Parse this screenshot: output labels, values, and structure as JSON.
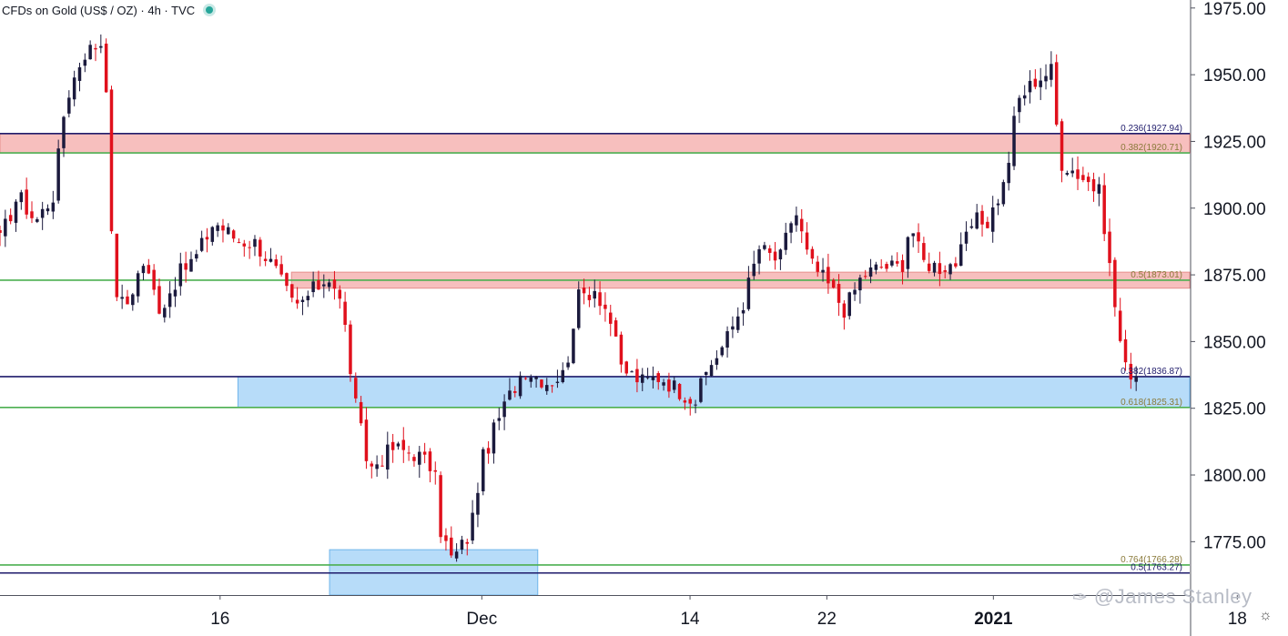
{
  "header": {
    "symbol_title": "CFDs on Gold (US$ / OZ) · 4h · TVC"
  },
  "watermark": {
    "handle": "@James Stanley"
  },
  "colors": {
    "up_candle": "#1b1a3d",
    "down_candle": "#e0101c",
    "fib_navy": "#1f1b6b",
    "fib_green": "#4caf50",
    "red_zone": "#f4a9a8",
    "blue_zone": "#9fd0f7"
  },
  "chart_data": {
    "type": "candlestick",
    "title": "CFDs on Gold (US$ / OZ) · 4h · TVC",
    "ylim": [
      1755,
      1978
    ],
    "y_ticks": [
      "1975.00",
      "1950.00",
      "1925.00",
      "1900.00",
      "1875.00",
      "1850.00",
      "1825.00",
      "1800.00",
      "1775.00"
    ],
    "x_ticks": [
      "16",
      "Dec",
      "14",
      "22",
      "2021",
      "18"
    ],
    "x_tick_positions": [
      0.185,
      0.405,
      0.58,
      0.695,
      0.835,
      1.04
    ],
    "fib_levels": [
      {
        "label": "0.236(1927.94)",
        "value": 1927.94,
        "color": "navy",
        "start": 0
      },
      {
        "label": "0.382(1920.71)",
        "value": 1920.71,
        "color": "green",
        "start": 0
      },
      {
        "label": "0.5(1873.01)",
        "value": 1873.01,
        "color": "green",
        "start": 0
      },
      {
        "label": "0.382(1836.87)",
        "value": 1836.87,
        "color": "navy",
        "start": 0
      },
      {
        "label": "0.618(1825.31)",
        "value": 1825.31,
        "color": "green",
        "start": 0
      },
      {
        "label": "0.764(1766.28)",
        "value": 1766.28,
        "color": "green",
        "start": 0
      },
      {
        "label": "0.5(1763.27)",
        "value": 1763.27,
        "color": "navy",
        "start": 0
      }
    ],
    "zones": [
      {
        "kind": "red",
        "low": 1920.71,
        "high": 1927.94,
        "start": 0.0,
        "end": 1.0
      },
      {
        "kind": "red",
        "low": 1870.0,
        "high": 1876.0,
        "start": 0.245,
        "end": 1.0
      },
      {
        "kind": "blue",
        "low": 1825.31,
        "high": 1836.87,
        "start": 0.2,
        "end": 1.0
      },
      {
        "kind": "blue",
        "low": 1755.0,
        "high": 1772.0,
        "start": 0.277,
        "end": 0.452
      }
    ],
    "anchors": [
      [
        0.0,
        1888
      ],
      [
        0.015,
        1905
      ],
      [
        0.03,
        1895
      ],
      [
        0.045,
        1905
      ],
      [
        0.055,
        1940
      ],
      [
        0.07,
        1958
      ],
      [
        0.088,
        1963
      ],
      [
        0.095,
        1872
      ],
      [
        0.105,
        1862
      ],
      [
        0.12,
        1880
      ],
      [
        0.135,
        1862
      ],
      [
        0.15,
        1875
      ],
      [
        0.165,
        1882
      ],
      [
        0.18,
        1895
      ],
      [
        0.2,
        1888
      ],
      [
        0.215,
        1887
      ],
      [
        0.23,
        1878
      ],
      [
        0.248,
        1862
      ],
      [
        0.265,
        1870
      ],
      [
        0.278,
        1875
      ],
      [
        0.288,
        1862
      ],
      [
        0.298,
        1828
      ],
      [
        0.31,
        1802
      ],
      [
        0.33,
        1810
      ],
      [
        0.35,
        1808
      ],
      [
        0.365,
        1802
      ],
      [
        0.37,
        1780
      ],
      [
        0.38,
        1768
      ],
      [
        0.395,
        1778
      ],
      [
        0.405,
        1805
      ],
      [
        0.42,
        1822
      ],
      [
        0.44,
        1840
      ],
      [
        0.46,
        1835
      ],
      [
        0.475,
        1838
      ],
      [
        0.485,
        1866
      ],
      [
        0.5,
        1870
      ],
      [
        0.512,
        1860
      ],
      [
        0.522,
        1840
      ],
      [
        0.54,
        1835
      ],
      [
        0.555,
        1837
      ],
      [
        0.57,
        1832
      ],
      [
        0.585,
        1828
      ],
      [
        0.595,
        1840
      ],
      [
        0.61,
        1850
      ],
      [
        0.625,
        1865
      ],
      [
        0.638,
        1885
      ],
      [
        0.655,
        1880
      ],
      [
        0.668,
        1900
      ],
      [
        0.68,
        1880
      ],
      [
        0.695,
        1872
      ],
      [
        0.71,
        1862
      ],
      [
        0.725,
        1875
      ],
      [
        0.74,
        1878
      ],
      [
        0.758,
        1878
      ],
      [
        0.765,
        1895
      ],
      [
        0.775,
        1880
      ],
      [
        0.79,
        1878
      ],
      [
        0.805,
        1880
      ],
      [
        0.818,
        1895
      ],
      [
        0.83,
        1895
      ],
      [
        0.845,
        1910
      ],
      [
        0.855,
        1940
      ],
      [
        0.87,
        1948
      ],
      [
        0.885,
        1952
      ],
      [
        0.89,
        1918
      ],
      [
        0.9,
        1915
      ],
      [
        0.915,
        1910
      ],
      [
        0.925,
        1905
      ],
      [
        0.935,
        1870
      ],
      [
        0.945,
        1840
      ],
      [
        0.955,
        1838
      ]
    ]
  }
}
